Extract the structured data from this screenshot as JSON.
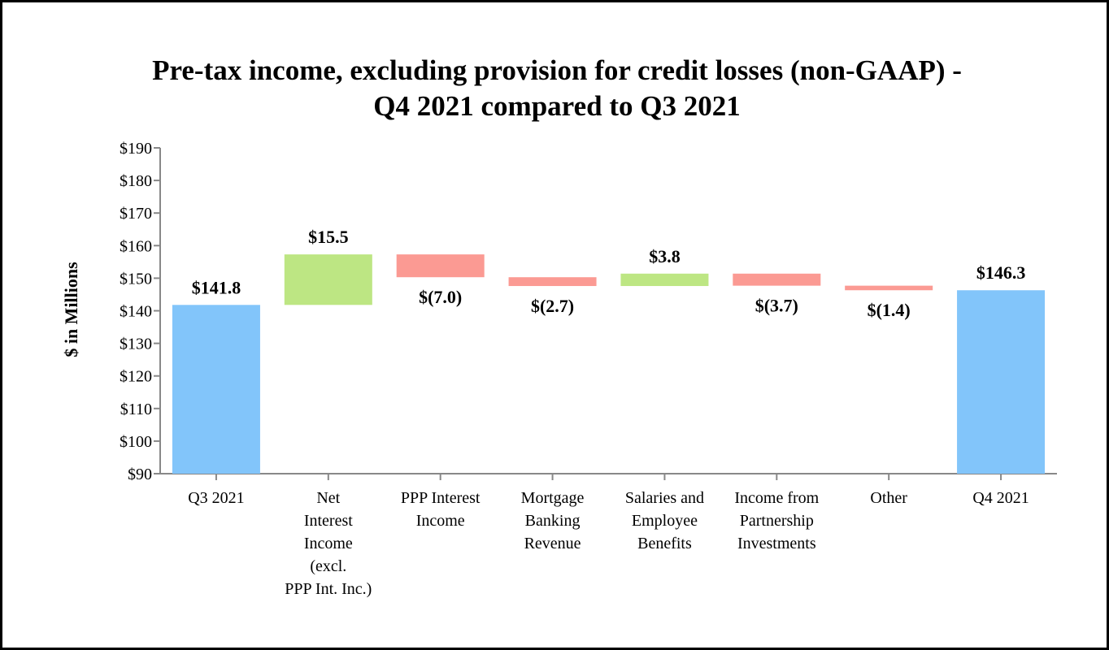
{
  "chart_data": {
    "type": "waterfall",
    "title_lines": [
      "Pre-tax income, excluding provision for credit losses (non-GAAP) -",
      "Q4 2021 compared to Q3 2021"
    ],
    "ylabel": "$ in Millions",
    "ylim": [
      90,
      190
    ],
    "ytick_step": 10,
    "ytick_labels": [
      "$90",
      "$100",
      "$110",
      "$120",
      "$130",
      "$140",
      "$150",
      "$160",
      "$170",
      "$180",
      "$190"
    ],
    "colors": {
      "total": "#82c5fa",
      "increase": "#bde683",
      "decrease": "#fb9a93",
      "axis": "#888888"
    },
    "categories": [
      {
        "label_lines": [
          "Q3 2021"
        ],
        "kind": "total",
        "value": 141.8,
        "data_label": "$141.8"
      },
      {
        "label_lines": [
          "Net",
          "Interest",
          "Income",
          "(excl.",
          "PPP Int. Inc.)"
        ],
        "kind": "increase",
        "value": 15.5,
        "data_label": "$15.5"
      },
      {
        "label_lines": [
          "PPP Interest",
          "Income"
        ],
        "kind": "decrease",
        "value": -7.0,
        "data_label": "$(7.0)"
      },
      {
        "label_lines": [
          "Mortgage",
          "Banking",
          "Revenue"
        ],
        "kind": "decrease",
        "value": -2.7,
        "data_label": "$(2.7)"
      },
      {
        "label_lines": [
          "Salaries and",
          "Employee",
          "Benefits"
        ],
        "kind": "increase",
        "value": 3.8,
        "data_label": "$3.8"
      },
      {
        "label_lines": [
          "Income from",
          "Partnership",
          "Investments"
        ],
        "kind": "decrease",
        "value": -3.7,
        "data_label": "$(3.7)"
      },
      {
        "label_lines": [
          "Other"
        ],
        "kind": "decrease",
        "value": -1.4,
        "data_label": "$(1.4)"
      },
      {
        "label_lines": [
          "Q4 2021"
        ],
        "kind": "total",
        "value": 146.3,
        "data_label": "$146.3"
      }
    ]
  }
}
